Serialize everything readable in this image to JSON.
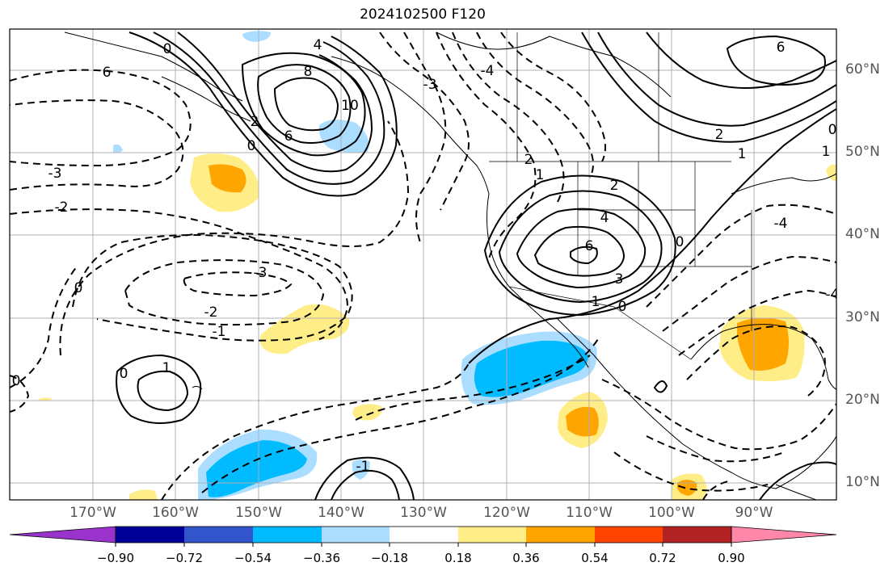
{
  "title": "2024102500 F120",
  "lat_labels": [
    "60°N",
    "50°N",
    "40°N",
    "30°N",
    "20°N",
    "10°N"
  ],
  "lon_labels": [
    "170°W",
    "160°W",
    "150°W",
    "140°W",
    "130°W",
    "120°W",
    "110°W",
    "100°W",
    "90°W"
  ],
  "contour_labels": [
    "6",
    "0",
    "-3",
    "-2",
    "0",
    "-3",
    "-2",
    "-1",
    "0",
    "1",
    "4",
    "8",
    "10",
    "6",
    "2",
    "0",
    "-4",
    "-3",
    "2",
    "1",
    "2",
    "4",
    "6",
    "3",
    "1",
    "0",
    "2",
    "1",
    "0",
    "-4",
    "6",
    "-1",
    "0",
    "0",
    "1",
    "-4"
  ],
  "colorbar": {
    "colors": [
      "#9933cc",
      "#000099",
      "#3355cc",
      "#00bbff",
      "#aaddff",
      "#ffffff",
      "#ffee88",
      "#ffa500",
      "#ff4400",
      "#b22222",
      "#ff88aa"
    ],
    "tick_labels": [
      "−0.90",
      "−0.72",
      "−0.54",
      "−0.36",
      "−0.18",
      "0.18",
      "0.36",
      "0.54",
      "0.72",
      "0.90"
    ]
  }
}
